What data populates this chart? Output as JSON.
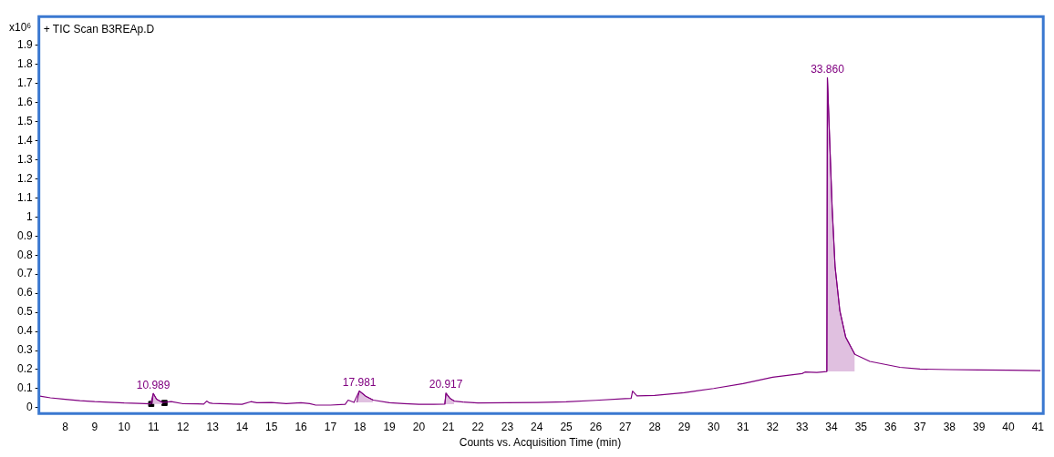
{
  "chart_data": {
    "type": "line",
    "title": "+ TIC Scan B3REAp.D",
    "xlabel": "Counts vs. Acquisition Time (min)",
    "ylabel": "x10⁶",
    "xlim": [
      7.14,
      41.09
    ],
    "xticks": [
      8,
      9,
      10,
      11,
      12,
      13,
      14,
      15,
      16,
      17,
      18,
      19,
      20,
      21,
      22,
      23,
      24,
      25,
      26,
      27,
      28,
      29,
      30,
      31,
      32,
      33,
      34,
      35,
      36,
      37,
      38,
      39,
      40,
      41
    ],
    "ylim": [
      -0.03,
      2.05
    ],
    "yticks": [
      0,
      0.1,
      0.2,
      0.3,
      0.4,
      0.5,
      0.6,
      0.7,
      0.8,
      0.9,
      1,
      1.1,
      1.2,
      1.3,
      1.4,
      1.5,
      1.6,
      1.7,
      1.8,
      1.9
    ],
    "grid": false,
    "legend": false,
    "series": [
      {
        "type": "line",
        "color": "#800080",
        "x": [
          7.14,
          7.5,
          8,
          8.5,
          9,
          9.5,
          10,
          10.5,
          10.9,
          10.99,
          11.1,
          11.3,
          11.6,
          12,
          12.5,
          12.7,
          12.8,
          12.9,
          13,
          13.5,
          14,
          14.3,
          14.5,
          15,
          15.5,
          16,
          16.3,
          16.5,
          17,
          17.5,
          17.6,
          17.8,
          17.98,
          18.2,
          18.45,
          19,
          19.5,
          20,
          20.5,
          20.88,
          20.92,
          21.05,
          21.2,
          21.5,
          22,
          23,
          24,
          25,
          26,
          27,
          27.2,
          27.25,
          27.4,
          28,
          29,
          30,
          31,
          32,
          33,
          33.1,
          33.5,
          33.84,
          33.86,
          34.02,
          34.12,
          34.28,
          34.48,
          34.79,
          35.3,
          36.32,
          37,
          38,
          39,
          40,
          41.09
        ],
        "values": [
          0.061,
          0.052,
          0.044,
          0.037,
          0.032,
          0.029,
          0.025,
          0.023,
          0.02,
          0.075,
          0.045,
          0.028,
          0.032,
          0.021,
          0.02,
          0.019,
          0.035,
          0.025,
          0.023,
          0.02,
          0.018,
          0.032,
          0.026,
          0.028,
          0.022,
          0.026,
          0.022,
          0.014,
          0.014,
          0.018,
          0.04,
          0.028,
          0.088,
          0.06,
          0.04,
          0.026,
          0.022,
          0.018,
          0.018,
          0.019,
          0.077,
          0.05,
          0.035,
          0.03,
          0.025,
          0.026,
          0.028,
          0.031,
          0.039,
          0.048,
          0.049,
          0.087,
          0.062,
          0.065,
          0.079,
          0.101,
          0.127,
          0.16,
          0.179,
          0.187,
          0.185,
          0.19,
          1.73,
          1.05,
          0.74,
          0.51,
          0.37,
          0.28,
          0.243,
          0.212,
          0.203,
          0.2,
          0.198,
          0.197,
          0.195
        ]
      },
      {
        "type": "area",
        "color": "#e0c0e0",
        "x": [
          10.95,
          10.99,
          11.1,
          11.3
        ],
        "values": [
          0.02,
          0.075,
          0.045,
          0.028
        ]
      },
      {
        "type": "area",
        "color": "#e0c0e0",
        "x": [
          17.9,
          17.98,
          18.2,
          18.45
        ],
        "values": [
          0.028,
          0.088,
          0.06,
          0.04
        ]
      },
      {
        "type": "area",
        "color": "#e0c0e0",
        "x": [
          20.88,
          20.92,
          21.05,
          21.2
        ],
        "values": [
          0.019,
          0.077,
          0.05,
          0.035
        ]
      },
      {
        "type": "area",
        "color": "#e0c0e0",
        "x": [
          33.84,
          33.86,
          34.02,
          34.12,
          34.28,
          34.48,
          34.79
        ],
        "values": [
          0.19,
          1.73,
          1.05,
          0.74,
          0.51,
          0.37,
          0.28
        ]
      },
      {
        "type": "scatter",
        "color": "#000000",
        "marker": "square",
        "x": [
          10.92,
          11.37
        ],
        "values": [
          0.02,
          0.025
        ]
      }
    ],
    "annotations": [
      {
        "text": "10.989",
        "x": 10.989,
        "y": 0.075
      },
      {
        "text": "17.981",
        "x": 17.981,
        "y": 0.088
      },
      {
        "text": "20.917",
        "x": 20.917,
        "y": 0.077
      },
      {
        "text": "33.860",
        "x": 33.86,
        "y": 1.73
      }
    ]
  }
}
